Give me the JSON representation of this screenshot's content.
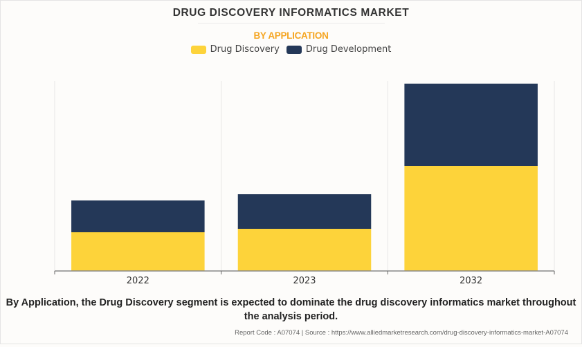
{
  "header": {
    "title": "DRUG DISCOVERY INFORMATICS MARKET",
    "subtitle": "BY APPLICATION"
  },
  "legend": [
    {
      "label": "Drug Discovery",
      "color": "#fdd33a"
    },
    {
      "label": "Drug Development",
      "color": "#243858"
    }
  ],
  "chart_data": {
    "type": "bar",
    "stacked": true,
    "title": "DRUG DISCOVERY INFORMATICS MARKET",
    "subtitle": "BY APPLICATION",
    "xlabel": "",
    "ylabel": "",
    "categories": [
      "2022",
      "2023",
      "2032"
    ],
    "series": [
      {
        "name": "Drug Discovery",
        "color": "#fdd33a",
        "values": [
          56,
          61,
          152
        ]
      },
      {
        "name": "Drug Development",
        "color": "#243858",
        "values": [
          46,
          50,
          119
        ]
      }
    ],
    "ylim": [
      0,
      275
    ],
    "units_note": "relative units (no y-axis shown)",
    "grid": "vertical category separators",
    "legend_position": "top-center"
  },
  "footer": {
    "caption": "By Application, the Drug Discovery segment is expected to dominate the drug discovery informatics market throughout the analysis period.",
    "source": "Report Code : A07074  |  Source : https://www.alliedmarketresearch.com/drug-discovery-informatics-market-A07074"
  }
}
